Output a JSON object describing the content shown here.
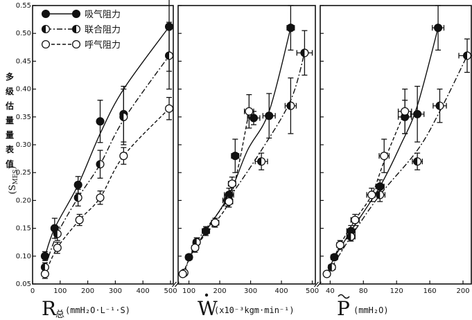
{
  "ylabel": {
    "vertical_chars": [
      "多",
      "级",
      "估",
      "量",
      "量",
      "表",
      "值"
    ],
    "symbol": "(S",
    "symbol_sub": "MES",
    "symbol_close": ")"
  },
  "legend": [
    {
      "name": "吸气阻力",
      "marker": "filled"
    },
    {
      "name": "联合阻力",
      "marker": "half"
    },
    {
      "name": "呼气阻力",
      "marker": "open"
    }
  ],
  "chart_data": [
    {
      "type": "scatter",
      "panel": "R",
      "x_label_main": "R",
      "x_label_sub": "总",
      "x_label_unit": "(mmH₂O·L⁻¹·S)",
      "xlim": [
        0,
        510
      ],
      "ylim": [
        0.05,
        0.55
      ],
      "x_ticks": [
        0,
        100,
        200,
        300,
        400,
        500
      ],
      "x_tick_labels": [
        "0",
        "100",
        "200",
        "300",
        "400",
        "500"
      ],
      "y_ticks": [
        0.05,
        0.1,
        0.15,
        0.2,
        0.25,
        0.3,
        0.35,
        0.4,
        0.45,
        0.5,
        0.55
      ],
      "y_tick_labels": [
        "0.05",
        "0.10",
        "0.15",
        "0.20",
        "0.25",
        "0.30",
        "0.35",
        "0.40",
        "0.45",
        "0.50",
        "0.55"
      ],
      "series": [
        {
          "name": "吸气阻力",
          "marker": "filled",
          "line": "solid",
          "points": [
            {
              "x": 45,
              "y": 0.1,
              "yerr": 0.008,
              "xerr": 0
            },
            {
              "x": 80,
              "y": 0.15,
              "yerr": 0.018,
              "xerr": 0
            },
            {
              "x": 165,
              "y": 0.228,
              "yerr": 0.015,
              "xerr": 0
            },
            {
              "x": 245,
              "y": 0.342,
              "yerr": 0.038,
              "xerr": 0
            },
            {
              "x": 330,
              "y": 0.355,
              "yerr": 0.05,
              "xerr": 0
            },
            {
              "x": 495,
              "y": 0.512,
              "yerr": 0.08,
              "xerr": 0
            }
          ],
          "curve": [
            [
              45,
              0.1
            ],
            [
              80,
              0.15
            ],
            [
              165,
              0.228
            ],
            [
              245,
              0.32
            ],
            [
              330,
              0.4
            ],
            [
              495,
              0.512
            ]
          ]
        },
        {
          "name": "联合阻力",
          "marker": "half",
          "line": "dashdot",
          "points": [
            {
              "x": 45,
              "y": 0.08,
              "yerr": 0.008,
              "xerr": 0
            },
            {
              "x": 90,
              "y": 0.14,
              "yerr": 0.012,
              "xerr": 0
            },
            {
              "x": 165,
              "y": 0.205,
              "yerr": 0.015,
              "xerr": 0
            },
            {
              "x": 245,
              "y": 0.265,
              "yerr": 0.025,
              "xerr": 0
            },
            {
              "x": 330,
              "y": 0.35,
              "yerr": 0.05,
              "xerr": 0
            },
            {
              "x": 495,
              "y": 0.46,
              "yerr": 0.06,
              "xerr": 0
            }
          ],
          "curve": [
            [
              45,
              0.08
            ],
            [
              90,
              0.14
            ],
            [
              165,
              0.205
            ],
            [
              245,
              0.265
            ],
            [
              330,
              0.345
            ],
            [
              495,
              0.46
            ]
          ]
        },
        {
          "name": "呼气阻力",
          "marker": "open",
          "line": "dashed",
          "points": [
            {
              "x": 45,
              "y": 0.068,
              "yerr": 0.008,
              "xerr": 0
            },
            {
              "x": 90,
              "y": 0.115,
              "yerr": 0.01,
              "xerr": 0
            },
            {
              "x": 170,
              "y": 0.165,
              "yerr": 0.01,
              "xerr": 0
            },
            {
              "x": 245,
              "y": 0.205,
              "yerr": 0.012,
              "xerr": 0
            },
            {
              "x": 330,
              "y": 0.28,
              "yerr": 0.015,
              "xerr": 0
            },
            {
              "x": 495,
              "y": 0.365,
              "yerr": 0.02,
              "xerr": 0
            }
          ],
          "curve": [
            [
              45,
              0.068
            ],
            [
              90,
              0.115
            ],
            [
              170,
              0.165
            ],
            [
              245,
              0.205
            ],
            [
              330,
              0.28
            ],
            [
              495,
              0.365
            ]
          ]
        }
      ]
    },
    {
      "type": "scatter",
      "panel": "W",
      "x_label_main": "W",
      "x_label_sub": "",
      "x_label_unit": "(x10⁻³kgm·min⁻¹)",
      "xlim": [
        65,
        510
      ],
      "ylim": [
        0.05,
        0.55
      ],
      "x_ticks": [
        100,
        200,
        300,
        400,
        500
      ],
      "x_tick_labels": [
        "100",
        "200",
        "300",
        "400",
        "500"
      ],
      "series": [
        {
          "name": "吸气阻力",
          "marker": "filled",
          "line": "solid",
          "points": [
            {
              "x": 100,
              "y": 0.098,
              "yerr": 0.005,
              "xerr": 10
            },
            {
              "x": 155,
              "y": 0.145,
              "yerr": 0.008,
              "xerr": 12
            },
            {
              "x": 230,
              "y": 0.21,
              "yerr": 0.012,
              "xerr": 15
            },
            {
              "x": 250,
              "y": 0.28,
              "yerr": 0.03,
              "xerr": 12
            },
            {
              "x": 310,
              "y": 0.348,
              "yerr": 0.012,
              "xerr": 20
            },
            {
              "x": 360,
              "y": 0.352,
              "yerr": 0.04,
              "xerr": 20
            },
            {
              "x": 430,
              "y": 0.51,
              "yerr": 0.04,
              "xerr": 12
            }
          ],
          "curve": [
            [
              100,
              0.098
            ],
            [
              155,
              0.145
            ],
            [
              230,
              0.21
            ],
            [
              290,
              0.29
            ],
            [
              360,
              0.36
            ],
            [
              430,
              0.51
            ]
          ]
        },
        {
          "name": "联合阻力",
          "marker": "half",
          "line": "dashdot",
          "points": [
            {
              "x": 85,
              "y": 0.07,
              "yerr": 0.005,
              "xerr": 8
            },
            {
              "x": 125,
              "y": 0.125,
              "yerr": 0.008,
              "xerr": 10
            },
            {
              "x": 225,
              "y": 0.2,
              "yerr": 0.01,
              "xerr": 15
            },
            {
              "x": 335,
              "y": 0.27,
              "yerr": 0.015,
              "xerr": 20
            },
            {
              "x": 430,
              "y": 0.37,
              "yerr": 0.05,
              "xerr": 18
            },
            {
              "x": 475,
              "y": 0.465,
              "yerr": 0.04,
              "xerr": 25
            }
          ],
          "curve": [
            [
              85,
              0.07
            ],
            [
              125,
              0.125
            ],
            [
              225,
              0.2
            ],
            [
              335,
              0.29
            ],
            [
              430,
              0.38
            ],
            [
              475,
              0.465
            ]
          ]
        },
        {
          "name": "呼气阻力",
          "marker": "open",
          "line": "dashed",
          "points": [
            {
              "x": 80,
              "y": 0.068,
              "yerr": 0.005,
              "xerr": 8
            },
            {
              "x": 120,
              "y": 0.115,
              "yerr": 0.008,
              "xerr": 10
            },
            {
              "x": 185,
              "y": 0.16,
              "yerr": 0.008,
              "xerr": 12
            },
            {
              "x": 230,
              "y": 0.198,
              "yerr": 0.01,
              "xerr": 12
            },
            {
              "x": 240,
              "y": 0.23,
              "yerr": 0.012,
              "xerr": 12
            },
            {
              "x": 295,
              "y": 0.36,
              "yerr": 0.03,
              "xerr": 15
            }
          ],
          "curve": [
            [
              80,
              0.068
            ],
            [
              120,
              0.115
            ],
            [
              185,
              0.16
            ],
            [
              230,
              0.198
            ],
            [
              260,
              0.26
            ],
            [
              295,
              0.36
            ]
          ]
        }
      ]
    },
    {
      "type": "scatter",
      "panel": "P",
      "x_label_main": "P",
      "x_label_sub": "",
      "x_label_unit": "(mmH₂O)",
      "xlim": [
        28,
        210
      ],
      "ylim": [
        0.05,
        0.55
      ],
      "x_ticks": [
        40,
        80,
        120,
        160,
        200
      ],
      "x_tick_labels": [
        "40",
        "80",
        "120",
        "160",
        "200"
      ],
      "series": [
        {
          "name": "吸气阻力",
          "marker": "filled",
          "line": "solid",
          "points": [
            {
              "x": 45,
              "y": 0.098,
              "yerr": 0.005,
              "xerr": 4
            },
            {
              "x": 65,
              "y": 0.145,
              "yerr": 0.01,
              "xerr": 5
            },
            {
              "x": 100,
              "y": 0.225,
              "yerr": 0.012,
              "xerr": 5
            },
            {
              "x": 130,
              "y": 0.35,
              "yerr": 0.03,
              "xerr": 8
            },
            {
              "x": 145,
              "y": 0.355,
              "yerr": 0.05,
              "xerr": 8
            },
            {
              "x": 170,
              "y": 0.51,
              "yerr": 0.04,
              "xerr": 7
            }
          ],
          "curve": [
            [
              45,
              0.098
            ],
            [
              65,
              0.145
            ],
            [
              100,
              0.225
            ],
            [
              125,
              0.3
            ],
            [
              145,
              0.37
            ],
            [
              170,
              0.51
            ]
          ]
        },
        {
          "name": "联合阻力",
          "marker": "half",
          "line": "dashdot",
          "points": [
            {
              "x": 42,
              "y": 0.08,
              "yerr": 0.005,
              "xerr": 4
            },
            {
              "x": 65,
              "y": 0.135,
              "yerr": 0.008,
              "xerr": 5
            },
            {
              "x": 100,
              "y": 0.21,
              "yerr": 0.012,
              "xerr": 6
            },
            {
              "x": 145,
              "y": 0.27,
              "yerr": 0.015,
              "xerr": 6
            },
            {
              "x": 172,
              "y": 0.37,
              "yerr": 0.03,
              "xerr": 8
            },
            {
              "x": 205,
              "y": 0.46,
              "yerr": 0.03,
              "xerr": 10
            }
          ],
          "curve": [
            [
              42,
              0.08
            ],
            [
              65,
              0.135
            ],
            [
              100,
              0.21
            ],
            [
              145,
              0.29
            ],
            [
              172,
              0.36
            ],
            [
              205,
              0.46
            ]
          ]
        },
        {
          "name": "呼气阻力",
          "marker": "open",
          "line": "dashed",
          "points": [
            {
              "x": 36,
              "y": 0.068,
              "yerr": 0.005,
              "xerr": 3
            },
            {
              "x": 52,
              "y": 0.12,
              "yerr": 0.008,
              "xerr": 4
            },
            {
              "x": 70,
              "y": 0.165,
              "yerr": 0.01,
              "xerr": 5
            },
            {
              "x": 90,
              "y": 0.21,
              "yerr": 0.012,
              "xerr": 6
            },
            {
              "x": 105,
              "y": 0.28,
              "yerr": 0.03,
              "xerr": 6
            },
            {
              "x": 130,
              "y": 0.36,
              "yerr": 0.04,
              "xerr": 8
            }
          ],
          "curve": [
            [
              36,
              0.068
            ],
            [
              52,
              0.12
            ],
            [
              70,
              0.165
            ],
            [
              90,
              0.21
            ],
            [
              105,
              0.27
            ],
            [
              130,
              0.36
            ]
          ]
        }
      ]
    }
  ]
}
